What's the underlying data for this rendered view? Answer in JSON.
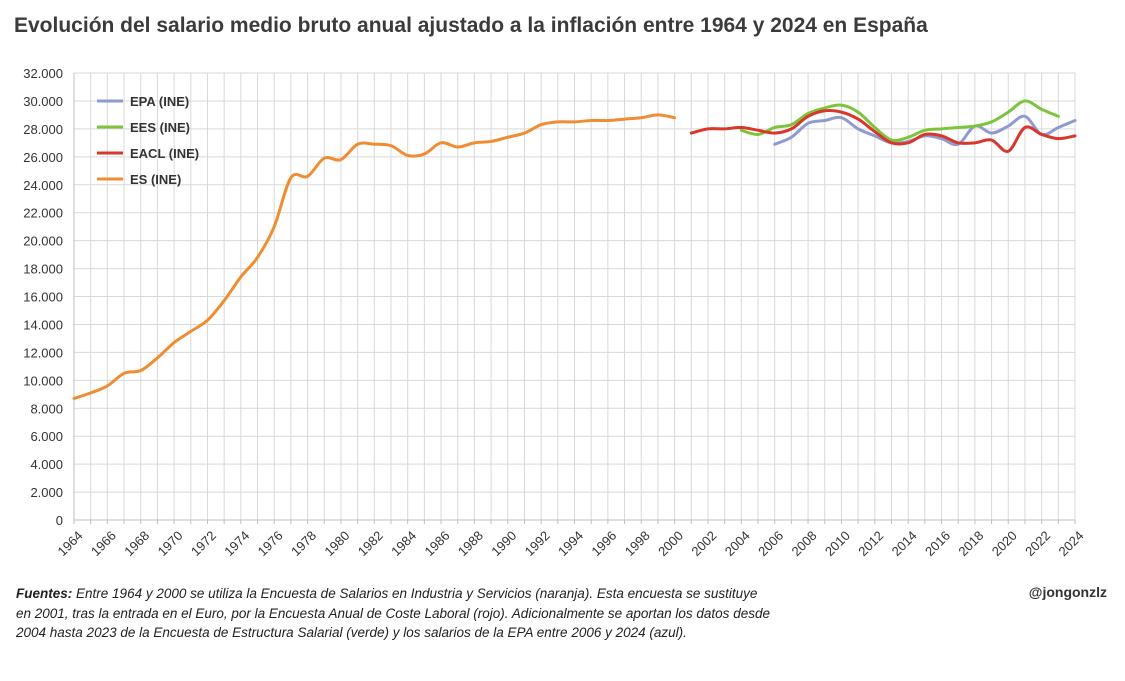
{
  "chart_data": {
    "type": "line",
    "title": "Evolución del salario medio bruto anual ajustado a la inflación entre 1964 y 2024 en España",
    "xlabel": "",
    "ylabel": "",
    "xlim": [
      1964,
      2024
    ],
    "ylim": [
      0,
      32000
    ],
    "y_ticks": [
      "0",
      "2.000",
      "4.000",
      "6.000",
      "8.000",
      "10.000",
      "12.000",
      "14.000",
      "16.000",
      "18.000",
      "20.000",
      "22.000",
      "24.000",
      "26.000",
      "28.000",
      "30.000",
      "32.000"
    ],
    "x_ticks": [
      "1964",
      "1966",
      "1968",
      "1970",
      "1972",
      "1974",
      "1976",
      "1978",
      "1980",
      "1982",
      "1984",
      "1986",
      "1988",
      "1990",
      "1992",
      "1994",
      "1996",
      "1998",
      "2000",
      "2002",
      "2004",
      "2006",
      "2008",
      "2010",
      "2012",
      "2014",
      "2016",
      "2018",
      "2020",
      "2022",
      "2024"
    ],
    "grid": true,
    "legend_position": "top-left",
    "series": [
      {
        "name": "EPA (INE)",
        "color": "#8f9bd0",
        "x": [
          2006,
          2007,
          2008,
          2009,
          2010,
          2011,
          2012,
          2013,
          2014,
          2015,
          2016,
          2017,
          2018,
          2019,
          2020,
          2021,
          2022,
          2023,
          2024
        ],
        "values": [
          26900,
          27400,
          28400,
          28600,
          28800,
          28000,
          27500,
          27000,
          27100,
          27500,
          27300,
          26900,
          28200,
          27700,
          28200,
          28900,
          27600,
          28100,
          28600
        ]
      },
      {
        "name": "EES (INE)",
        "color": "#7cc43a",
        "x": [
          2004,
          2005,
          2006,
          2007,
          2008,
          2009,
          2010,
          2011,
          2012,
          2013,
          2014,
          2015,
          2016,
          2017,
          2018,
          2019,
          2020,
          2021,
          2022,
          2023
        ],
        "values": [
          27900,
          27600,
          28100,
          28300,
          29100,
          29500,
          29700,
          29200,
          28100,
          27200,
          27400,
          27900,
          28000,
          28100,
          28200,
          28500,
          29200,
          30000,
          29400,
          28900
        ]
      },
      {
        "name": "EACL (INE)",
        "color": "#d9372b",
        "x": [
          2001,
          2002,
          2003,
          2004,
          2005,
          2006,
          2007,
          2008,
          2009,
          2010,
          2011,
          2012,
          2013,
          2014,
          2015,
          2016,
          2017,
          2018,
          2019,
          2020,
          2021,
          2022,
          2023,
          2024
        ],
        "values": [
          27700,
          28000,
          28000,
          28100,
          27900,
          27700,
          28000,
          28900,
          29300,
          29200,
          28700,
          27800,
          27000,
          27000,
          27600,
          27500,
          27000,
          27000,
          27200,
          26400,
          28100,
          27600,
          27300,
          27500
        ]
      },
      {
        "name": "ES (INE)",
        "color": "#f08c32",
        "x": [
          1964,
          1965,
          1966,
          1967,
          1968,
          1969,
          1970,
          1971,
          1972,
          1973,
          1974,
          1975,
          1976,
          1977,
          1978,
          1979,
          1980,
          1981,
          1982,
          1983,
          1984,
          1985,
          1986,
          1987,
          1988,
          1989,
          1990,
          1991,
          1992,
          1993,
          1994,
          1995,
          1996,
          1997,
          1998,
          1999,
          2000
        ],
        "values": [
          8700,
          9100,
          9600,
          10500,
          10700,
          11600,
          12700,
          13500,
          14300,
          15700,
          17400,
          18800,
          21000,
          24500,
          24600,
          25900,
          25800,
          26900,
          26900,
          26800,
          26100,
          26200,
          27000,
          26700,
          27000,
          27100,
          27400,
          27700,
          28300,
          28500,
          28500,
          28600,
          28600,
          28700,
          28800,
          29000,
          28800
        ]
      }
    ]
  },
  "footnote": {
    "label": "Fuentes:",
    "text": "Entre 1964 y 2000 se utiliza la Encuesta de Salarios en Industria y Servicios (naranja). Esta encuesta se sustituye en 2001, tras la entrada en el Euro, por la Encuesta Anual de Coste Laboral (rojo). Adicionalmente se aportan los datos desde 2004 hasta 2023 de la Encuesta de Estructura Salarial (verde) y los salarios de la EPA entre 2006 y 2024 (azul)."
  },
  "handle": "@jongonzlz"
}
